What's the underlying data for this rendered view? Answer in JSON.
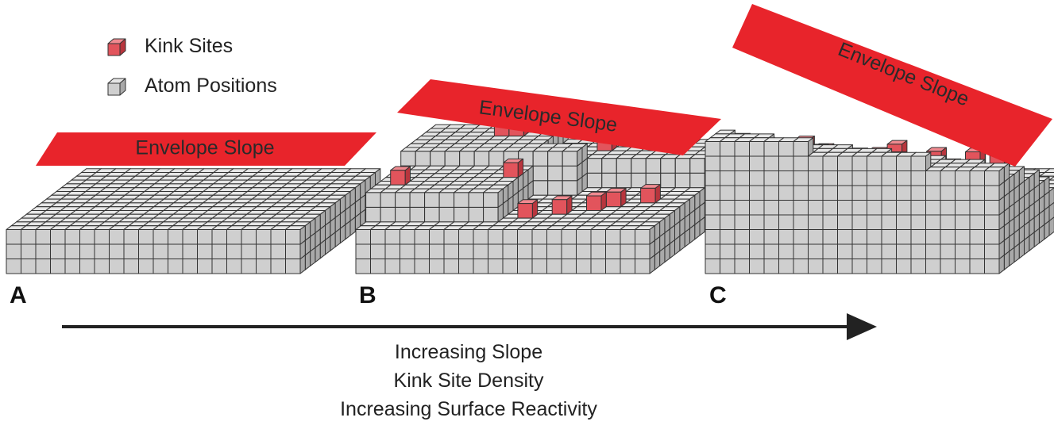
{
  "legend": {
    "kink_label": "Kink Sites",
    "atom_label": "Atom Positions"
  },
  "panels": [
    {
      "letter": "A",
      "envelope_label": "Envelope Slope"
    },
    {
      "letter": "B",
      "envelope_label": "Envelope Slope"
    },
    {
      "letter": "C",
      "envelope_label": "Envelope Slope"
    }
  ],
  "caption": {
    "line1": "Increasing Slope",
    "line2": "Kink Site Density",
    "line3": "Increasing Surface Reactivity"
  },
  "colors": {
    "atom_front": "#cfcfcf",
    "atom_top": "#e6e6e6",
    "atom_side": "#a9a9a9",
    "kink_front": "#e2545c",
    "kink_top": "#f08a90",
    "kink_side": "#b8353d",
    "envelope": "#e8242b",
    "outline": "#333333",
    "arrow": "#222222"
  }
}
